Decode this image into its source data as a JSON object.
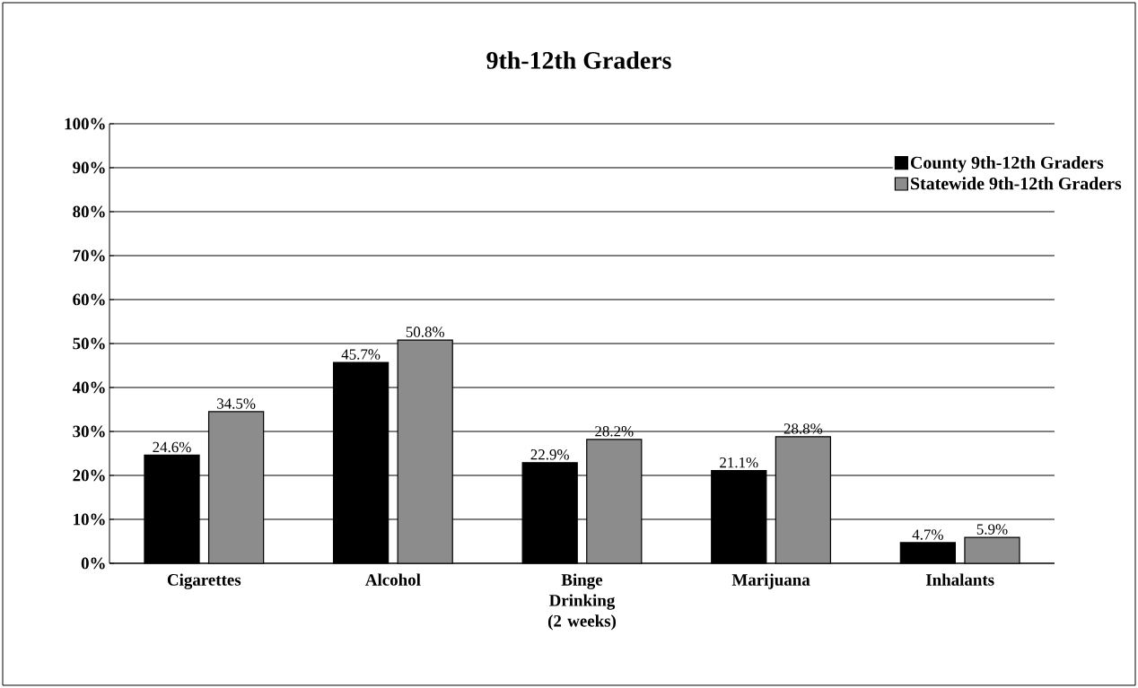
{
  "chart_data": {
    "type": "bar",
    "title": "9th-12th Graders",
    "categories": [
      "Cigarettes",
      "Alcohol",
      "Binge Drinking (2 weeks)",
      "Marijuana",
      "Inhalants"
    ],
    "series": [
      {
        "name": "County 9th-12th Graders",
        "color": "#000000",
        "values": [
          24.6,
          45.7,
          22.9,
          21.1,
          4.7
        ],
        "value_labels": [
          "24.6%",
          "45.7%",
          "22.9%",
          "21.1%",
          "4.7%"
        ]
      },
      {
        "name": "Statewide 9th-12th Graders",
        "color": "#8c8c8c",
        "values": [
          34.5,
          50.8,
          28.2,
          28.8,
          5.9
        ],
        "value_labels": [
          "34.5%",
          "50.8%",
          "28.2%",
          "28.8%",
          "5.9%"
        ]
      }
    ],
    "ylim": [
      0,
      100
    ],
    "yticks": [
      {
        "value": 0,
        "label": "0%"
      },
      {
        "value": 10,
        "label": "10%"
      },
      {
        "value": 20,
        "label": "20%"
      },
      {
        "value": 30,
        "label": "30%"
      },
      {
        "value": 40,
        "label": "40%"
      },
      {
        "value": 50,
        "label": "50%"
      },
      {
        "value": 60,
        "label": "60%"
      },
      {
        "value": 70,
        "label": "70%"
      },
      {
        "value": 80,
        "label": "80%"
      },
      {
        "value": 90,
        "label": "90%"
      },
      {
        "value": 100,
        "label": "100%"
      }
    ],
    "grid": "y",
    "legend": "top right"
  }
}
